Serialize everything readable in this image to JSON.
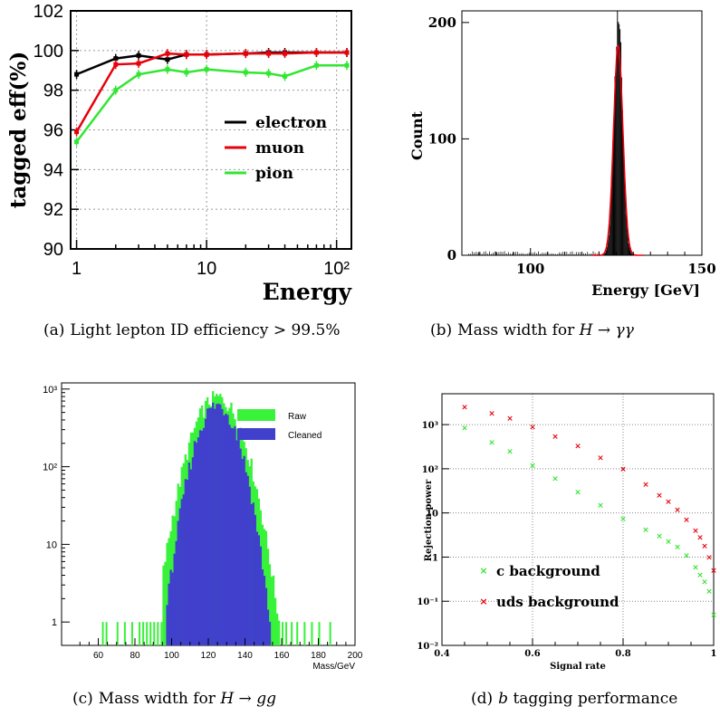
{
  "panels": [
    {
      "label": "(a)",
      "caption": "Light lepton ID efficiency > 99.5%",
      "chart_data": {
        "type": "line",
        "xlabel": "Energy",
        "ylabel": "tagged eff(%)",
        "xscale": "log",
        "xlim": [
          0.9,
          130
        ],
        "ylim": [
          90,
          102
        ],
        "xticks": [
          "1",
          "10",
          "10²"
        ],
        "yticks": [
          "90",
          "92",
          "94",
          "96",
          "98",
          "100",
          "102"
        ],
        "grid": true,
        "legend": "right",
        "series": [
          {
            "name": "electron",
            "color": "#000000",
            "x": [
              1,
              2,
              3,
              5,
              7,
              10,
              20,
              30,
              40,
              70,
              120
            ],
            "y": [
              98.8,
              99.6,
              99.75,
              99.55,
              99.8,
              99.8,
              99.85,
              99.9,
              99.9,
              99.9,
              99.9
            ]
          },
          {
            "name": "muon",
            "color": "#e8000b",
            "x": [
              1,
              2,
              3,
              5,
              7,
              10,
              20,
              30,
              40,
              70,
              120
            ],
            "y": [
              95.9,
              99.3,
              99.35,
              99.85,
              99.8,
              99.8,
              99.85,
              99.85,
              99.85,
              99.9,
              99.9
            ]
          },
          {
            "name": "pion",
            "color": "#32e632",
            "x": [
              1,
              2,
              3,
              5,
              7,
              10,
              20,
              30,
              40,
              70,
              120
            ],
            "y": [
              95.4,
              98.0,
              98.8,
              99.05,
              98.9,
              99.05,
              98.9,
              98.85,
              98.7,
              99.25,
              99.25
            ]
          }
        ]
      }
    },
    {
      "label": "(b)",
      "caption_prefix": "Mass width for",
      "caption_math": "H → γγ",
      "chart_data": {
        "type": "bar",
        "xlabel": "Energy [GeV]",
        "ylabel": "Count",
        "xlim": [
          80,
          150
        ],
        "ylim": [
          0,
          210
        ],
        "xticks": [
          "100",
          "150"
        ],
        "yticks": [
          "0",
          "100",
          "200"
        ],
        "histogram_color": "#000000",
        "fit_color": "#e8000b",
        "peak": {
          "mean": 125.6,
          "sigma": 1.25,
          "height": 205
        },
        "fit": {
          "mean": 125.6,
          "sigma": 1.35,
          "height": 180
        }
      }
    },
    {
      "label": "(c)",
      "caption_prefix": "Mass width for",
      "caption_math": "H → gg",
      "chart_data": {
        "type": "bar",
        "xlabel": "Mass/GeV",
        "ylabel": "",
        "yscale": "log",
        "xlim": [
          40,
          200
        ],
        "ylim": [
          0.5,
          1200
        ],
        "xticks": [
          "60",
          "80",
          "100",
          "120",
          "140",
          "160",
          "180",
          "200"
        ],
        "yticks": [
          "1",
          "10",
          "10²",
          "10³"
        ],
        "legend": "top-right",
        "series": [
          {
            "name": "Raw",
            "color": "#39f23a",
            "mean": 125,
            "sigma": 9.2,
            "peak": 780
          },
          {
            "name": "Cleaned",
            "color": "#4040cc",
            "mean": 125,
            "sigma": 8.0,
            "peak": 620
          }
        ]
      }
    },
    {
      "label": "(d)",
      "caption_math": "b",
      "caption_suffix": "tagging performance",
      "chart_data": {
        "type": "scatter",
        "xlabel": "Signal rate",
        "ylabel": "Rejection power",
        "yscale": "log",
        "xlim": [
          0.4,
          1.0
        ],
        "ylim": [
          0.01,
          5000
        ],
        "xticks": [
          "0.4",
          "0.6",
          "0.8",
          "1"
        ],
        "yticks": [
          "10⁻²",
          "10⁻¹",
          "1",
          "10",
          "10²",
          "10³"
        ],
        "grid": true,
        "legend": "bottom-left",
        "series": [
          {
            "name": "c background",
            "color": "#32e632",
            "x": [
              0.45,
              0.51,
              0.55,
              0.6,
              0.65,
              0.7,
              0.75,
              0.8,
              0.85,
              0.88,
              0.9,
              0.92,
              0.94,
              0.96,
              0.97,
              0.98,
              0.99,
              1.0
            ],
            "y": [
              850,
              400,
              250,
              120,
              60,
              30,
              15,
              7.5,
              4.2,
              3.0,
              2.3,
              1.7,
              1.1,
              0.6,
              0.4,
              0.28,
              0.17,
              0.05
            ]
          },
          {
            "name": "uds background",
            "color": "#e8000b",
            "x": [
              0.45,
              0.51,
              0.55,
              0.6,
              0.65,
              0.7,
              0.75,
              0.8,
              0.85,
              0.88,
              0.9,
              0.92,
              0.94,
              0.96,
              0.97,
              0.98,
              0.99,
              1.0
            ],
            "y": [
              2500,
              1800,
              1400,
              900,
              550,
              330,
              180,
              100,
              45,
              25,
              18,
              12,
              7,
              4,
              2.8,
              1.8,
              1.0,
              0.5
            ]
          }
        ]
      }
    }
  ]
}
